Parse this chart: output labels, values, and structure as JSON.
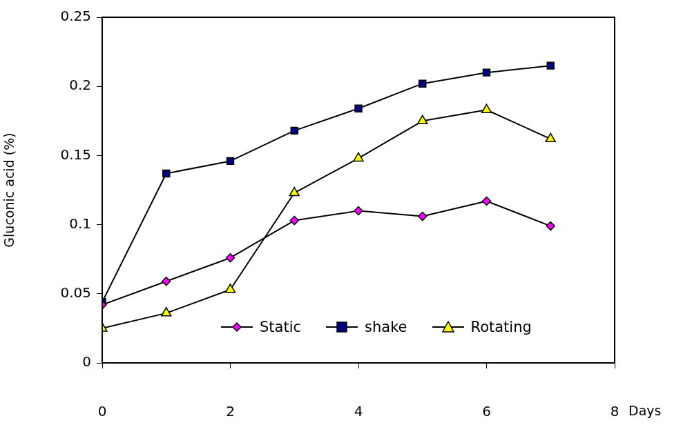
{
  "chart_data": {
    "type": "line",
    "xlabel": "Days",
    "ylabel": "Gluconic acid (%)",
    "x": [
      0,
      1,
      2,
      3,
      4,
      5,
      6,
      7
    ],
    "xlim": [
      0,
      8
    ],
    "xticks": [
      0,
      2,
      4,
      6,
      8
    ],
    "ylim": [
      0,
      0.25
    ],
    "yticks": [
      0,
      0.05,
      0.1,
      0.15,
      0.2,
      0.25
    ],
    "grid": false,
    "legend": "bottom",
    "line_style": "solid",
    "series": [
      {
        "name": "Static",
        "color": "#ff00ff",
        "marker": "diamond",
        "values": [
          0.042,
          0.059,
          0.076,
          0.103,
          0.11,
          0.106,
          0.117,
          0.099
        ]
      },
      {
        "name": "shake",
        "color": "#000080",
        "marker": "square",
        "values": [
          0.044,
          0.137,
          0.146,
          0.168,
          0.184,
          0.202,
          0.21,
          0.215
        ]
      },
      {
        "name": "Rotating",
        "color": "#ffff00",
        "marker": "triangle",
        "values": [
          0.025,
          0.036,
          0.053,
          0.123,
          0.148,
          0.175,
          0.183,
          0.162
        ]
      }
    ]
  }
}
